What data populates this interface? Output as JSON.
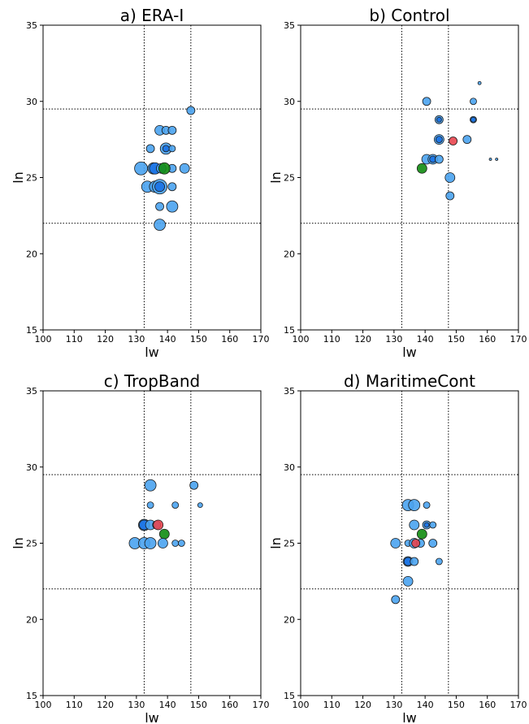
{
  "chart_data": [
    {
      "type": "scatter",
      "title": "a) ERA-I",
      "xlabel": "lw",
      "ylabel": "ln",
      "xlim": [
        100,
        170
      ],
      "ylim": [
        15,
        35
      ],
      "xticks": [
        100,
        110,
        120,
        130,
        140,
        150,
        160,
        170
      ],
      "yticks": [
        15,
        20,
        25,
        30,
        35
      ],
      "ref_x": [
        132.5,
        147.5
      ],
      "ref_y": [
        22,
        29.5
      ],
      "points": [
        {
          "x": 147.5,
          "y": 29.4,
          "size": 5,
          "color": "blue"
        },
        {
          "x": 137.5,
          "y": 28.1,
          "size": 6,
          "color": "blue"
        },
        {
          "x": 139.5,
          "y": 28.1,
          "size": 5,
          "color": "blue"
        },
        {
          "x": 141.5,
          "y": 28.1,
          "size": 5,
          "color": "blue"
        },
        {
          "x": 134.5,
          "y": 26.9,
          "size": 5,
          "color": "blue"
        },
        {
          "x": 139.5,
          "y": 26.9,
          "size": 7,
          "color": "blue"
        },
        {
          "x": 141.5,
          "y": 26.9,
          "size": 4,
          "color": "blue"
        },
        {
          "x": 139.5,
          "y": 26.9,
          "size": 4,
          "color": "darkblue"
        },
        {
          "x": 131.5,
          "y": 25.6,
          "size": 8,
          "color": "blue"
        },
        {
          "x": 135.5,
          "y": 25.6,
          "size": 7,
          "color": "blue"
        },
        {
          "x": 136.0,
          "y": 25.6,
          "size": 7,
          "color": "darkblue"
        },
        {
          "x": 138.0,
          "y": 25.6,
          "size": 6,
          "color": "blue"
        },
        {
          "x": 141.5,
          "y": 25.6,
          "size": 5,
          "color": "blue"
        },
        {
          "x": 145.5,
          "y": 25.6,
          "size": 6,
          "color": "blue"
        },
        {
          "x": 139.0,
          "y": 25.6,
          "size": 7,
          "color": "green"
        },
        {
          "x": 133.5,
          "y": 24.4,
          "size": 7,
          "color": "blue"
        },
        {
          "x": 136.0,
          "y": 24.4,
          "size": 7,
          "color": "blue"
        },
        {
          "x": 137.5,
          "y": 24.4,
          "size": 9,
          "color": "blue"
        },
        {
          "x": 137.5,
          "y": 24.4,
          "size": 6,
          "color": "darkblue"
        },
        {
          "x": 141.5,
          "y": 24.4,
          "size": 5,
          "color": "blue"
        },
        {
          "x": 137.5,
          "y": 23.1,
          "size": 5,
          "color": "blue"
        },
        {
          "x": 141.5,
          "y": 23.1,
          "size": 7,
          "color": "blue"
        },
        {
          "x": 137.5,
          "y": 21.9,
          "size": 7,
          "color": "blue"
        }
      ]
    },
    {
      "type": "scatter",
      "title": "b) Control",
      "xlabel": "lw",
      "ylabel": "ln",
      "xlim": [
        100,
        170
      ],
      "ylim": [
        15,
        35
      ],
      "xticks": [
        100,
        110,
        120,
        130,
        140,
        150,
        160,
        170
      ],
      "yticks": [
        15,
        20,
        25,
        30,
        35
      ],
      "ref_x": [
        132.5,
        147.5
      ],
      "ref_y": [
        22,
        29.5
      ],
      "points": [
        {
          "x": 157.5,
          "y": 31.2,
          "size": 2,
          "color": "blue"
        },
        {
          "x": 140.5,
          "y": 30.0,
          "size": 5,
          "color": "blue"
        },
        {
          "x": 155.5,
          "y": 30.0,
          "size": 4,
          "color": "blue"
        },
        {
          "x": 144.5,
          "y": 28.8,
          "size": 5,
          "color": "blue"
        },
        {
          "x": 144.5,
          "y": 28.8,
          "size": 3,
          "color": "darkblue"
        },
        {
          "x": 155.5,
          "y": 28.8,
          "size": 4,
          "color": "blue"
        },
        {
          "x": 155.5,
          "y": 28.8,
          "size": 3,
          "color": "darkblue"
        },
        {
          "x": 144.5,
          "y": 27.5,
          "size": 6,
          "color": "blue"
        },
        {
          "x": 144.5,
          "y": 27.5,
          "size": 4,
          "color": "darkblue"
        },
        {
          "x": 153.5,
          "y": 27.5,
          "size": 5,
          "color": "blue"
        },
        {
          "x": 149.0,
          "y": 27.4,
          "size": 5,
          "color": "red"
        },
        {
          "x": 140.5,
          "y": 26.2,
          "size": 6,
          "color": "blue"
        },
        {
          "x": 142.5,
          "y": 26.2,
          "size": 6,
          "color": "blue"
        },
        {
          "x": 142.5,
          "y": 26.2,
          "size": 4,
          "color": "darkblue"
        },
        {
          "x": 144.5,
          "y": 26.2,
          "size": 5,
          "color": "blue"
        },
        {
          "x": 161.0,
          "y": 26.2,
          "size": 1.5,
          "color": "blue"
        },
        {
          "x": 163.0,
          "y": 26.2,
          "size": 1.5,
          "color": "blue"
        },
        {
          "x": 139.0,
          "y": 25.6,
          "size": 6,
          "color": "green"
        },
        {
          "x": 148.0,
          "y": 25.0,
          "size": 6,
          "color": "blue"
        },
        {
          "x": 148.0,
          "y": 23.8,
          "size": 5,
          "color": "blue"
        }
      ]
    },
    {
      "type": "scatter",
      "title": "c) TropBand",
      "xlabel": "lw",
      "ylabel": "ln",
      "xlim": [
        100,
        170
      ],
      "ylim": [
        15,
        35
      ],
      "xticks": [
        100,
        110,
        120,
        130,
        140,
        150,
        160,
        170
      ],
      "yticks": [
        15,
        20,
        25,
        30,
        35
      ],
      "ref_x": [
        132.5,
        147.5
      ],
      "ref_y": [
        22,
        29.5
      ],
      "points": [
        {
          "x": 134.5,
          "y": 28.8,
          "size": 7,
          "color": "blue"
        },
        {
          "x": 148.5,
          "y": 28.8,
          "size": 5,
          "color": "blue"
        },
        {
          "x": 134.5,
          "y": 27.5,
          "size": 4,
          "color": "blue"
        },
        {
          "x": 142.5,
          "y": 27.5,
          "size": 4,
          "color": "blue"
        },
        {
          "x": 150.5,
          "y": 27.5,
          "size": 3,
          "color": "blue"
        },
        {
          "x": 132.5,
          "y": 26.2,
          "size": 7,
          "color": "blue"
        },
        {
          "x": 132.5,
          "y": 26.2,
          "size": 6,
          "color": "darkblue"
        },
        {
          "x": 134.5,
          "y": 26.2,
          "size": 6,
          "color": "blue"
        },
        {
          "x": 136.5,
          "y": 26.2,
          "size": 5,
          "color": "blue"
        },
        {
          "x": 137.0,
          "y": 26.2,
          "size": 6,
          "color": "red"
        },
        {
          "x": 139.0,
          "y": 25.6,
          "size": 6,
          "color": "green"
        },
        {
          "x": 129.5,
          "y": 25.0,
          "size": 7,
          "color": "blue"
        },
        {
          "x": 132.5,
          "y": 25.0,
          "size": 7,
          "color": "blue"
        },
        {
          "x": 134.5,
          "y": 25.0,
          "size": 7,
          "color": "blue"
        },
        {
          "x": 138.5,
          "y": 25.0,
          "size": 6,
          "color": "blue"
        },
        {
          "x": 142.5,
          "y": 25.0,
          "size": 4,
          "color": "blue"
        },
        {
          "x": 144.5,
          "y": 25.0,
          "size": 4,
          "color": "blue"
        }
      ]
    },
    {
      "type": "scatter",
      "title": "d) MaritimeCont",
      "xlabel": "lw",
      "ylabel": "ln",
      "xlim": [
        100,
        170
      ],
      "ylim": [
        15,
        35
      ],
      "xticks": [
        100,
        110,
        120,
        130,
        140,
        150,
        160,
        170
      ],
      "yticks": [
        15,
        20,
        25,
        30,
        35
      ],
      "ref_x": [
        132.5,
        147.5
      ],
      "ref_y": [
        22,
        29.5
      ],
      "points": [
        {
          "x": 134.5,
          "y": 27.5,
          "size": 7,
          "color": "blue"
        },
        {
          "x": 136.5,
          "y": 27.5,
          "size": 7,
          "color": "blue"
        },
        {
          "x": 140.5,
          "y": 27.5,
          "size": 4,
          "color": "blue"
        },
        {
          "x": 136.5,
          "y": 26.2,
          "size": 6,
          "color": "blue"
        },
        {
          "x": 140.5,
          "y": 26.2,
          "size": 5,
          "color": "blue"
        },
        {
          "x": 140.5,
          "y": 26.2,
          "size": 3,
          "color": "darkblue"
        },
        {
          "x": 142.5,
          "y": 26.2,
          "size": 4,
          "color": "blue"
        },
        {
          "x": 139.0,
          "y": 25.6,
          "size": 6,
          "color": "green"
        },
        {
          "x": 130.5,
          "y": 25.0,
          "size": 6,
          "color": "blue"
        },
        {
          "x": 134.5,
          "y": 25.0,
          "size": 4,
          "color": "blue"
        },
        {
          "x": 136.5,
          "y": 25.0,
          "size": 6,
          "color": "blue"
        },
        {
          "x": 138.5,
          "y": 25.0,
          "size": 5,
          "color": "blue"
        },
        {
          "x": 137.0,
          "y": 25.0,
          "size": 5,
          "color": "red"
        },
        {
          "x": 142.5,
          "y": 25.0,
          "size": 5,
          "color": "blue"
        },
        {
          "x": 134.5,
          "y": 23.8,
          "size": 6,
          "color": "blue"
        },
        {
          "x": 134.5,
          "y": 23.8,
          "size": 5,
          "color": "darkblue"
        },
        {
          "x": 136.5,
          "y": 23.8,
          "size": 5,
          "color": "blue"
        },
        {
          "x": 144.5,
          "y": 23.8,
          "size": 4,
          "color": "blue"
        },
        {
          "x": 134.5,
          "y": 22.5,
          "size": 6,
          "color": "blue"
        },
        {
          "x": 130.5,
          "y": 21.3,
          "size": 5,
          "color": "blue"
        }
      ]
    }
  ],
  "colors": {
    "blue": "#4aa3ef",
    "darkblue": "#1f77e6",
    "green": "#118c11",
    "red": "#e8454f",
    "edge": "#1a1a1a",
    "refline": "#000000"
  }
}
